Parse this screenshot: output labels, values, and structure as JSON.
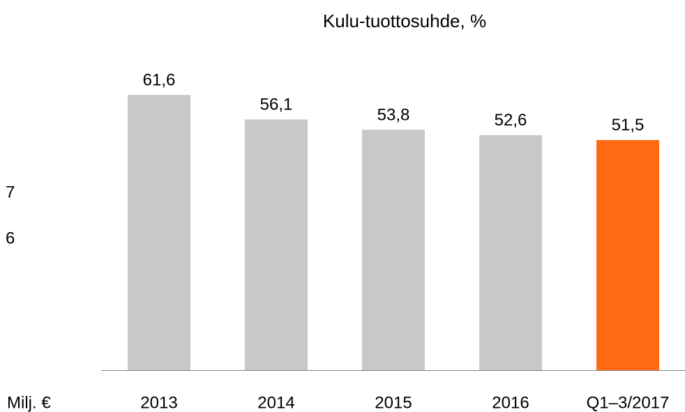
{
  "chart_data": {
    "type": "bar",
    "title": "Kulu-tuottosuhde, %",
    "categories": [
      "2013",
      "2014",
      "2015",
      "2016",
      "Q1–3/2017"
    ],
    "values": [
      61.6,
      56.1,
      53.8,
      52.6,
      51.5
    ],
    "value_labels": [
      "61,6",
      "56,1",
      "53,8",
      "52,6",
      "51,5"
    ],
    "colors": [
      "#c8c8c8",
      "#c8c8c8",
      "#c8c8c8",
      "#c8c8c8",
      "#ff6a13"
    ],
    "annotations": [
      "7",
      "6",
      "Milj. €"
    ]
  }
}
